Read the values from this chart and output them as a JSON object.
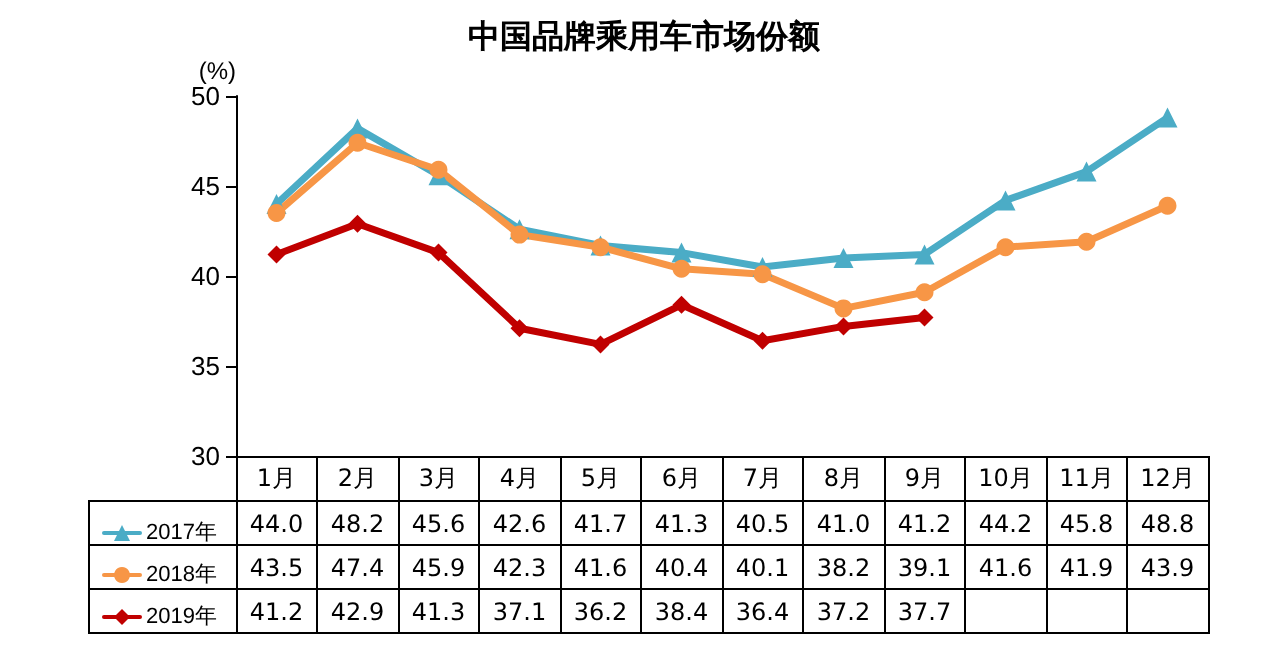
{
  "chart_data": {
    "type": "line",
    "title": "中国品牌乘用车市场份额",
    "ylabel": "(%)",
    "categories": [
      "1月",
      "2月",
      "3月",
      "4月",
      "5月",
      "6月",
      "7月",
      "8月",
      "9月",
      "10月",
      "11月",
      "12月"
    ],
    "ylim": [
      30,
      50
    ],
    "yticks": [
      30,
      35,
      40,
      45,
      50
    ],
    "legend": "bottom left",
    "line_style": "solid",
    "series": [
      {
        "name": "2017年",
        "color": "#4bacc6",
        "marker": "triangle",
        "values": [
          44.0,
          48.2,
          45.6,
          42.6,
          41.7,
          41.3,
          40.5,
          41.0,
          41.2,
          44.2,
          45.8,
          48.8
        ],
        "value_labels": [
          "44.0",
          "48.2",
          "45.6",
          "42.6",
          "41.7",
          "41.3",
          "40.5",
          "41.0",
          "41.2",
          "44.2",
          "45.8",
          "48.8"
        ]
      },
      {
        "name": "2018年",
        "color": "#f79646",
        "marker": "circle",
        "values": [
          43.5,
          47.4,
          45.9,
          42.3,
          41.6,
          40.4,
          40.1,
          38.2,
          39.1,
          41.6,
          41.9,
          43.9
        ],
        "value_labels": [
          "43.5",
          "47.4",
          "45.9",
          "42.3",
          "41.6",
          "40.4",
          "40.1",
          "38.2",
          "39.1",
          "41.6",
          "41.9",
          "43.9"
        ]
      },
      {
        "name": "2019年",
        "color": "#c00000",
        "marker": "diamond",
        "values": [
          41.2,
          42.9,
          41.3,
          37.1,
          36.2,
          38.4,
          36.4,
          37.2,
          37.7,
          null,
          null,
          null
        ],
        "value_labels": [
          "41.2",
          "42.9",
          "41.3",
          "37.1",
          "36.2",
          "38.4",
          "36.4",
          "37.2",
          "37.7",
          null,
          null,
          null
        ]
      }
    ]
  }
}
